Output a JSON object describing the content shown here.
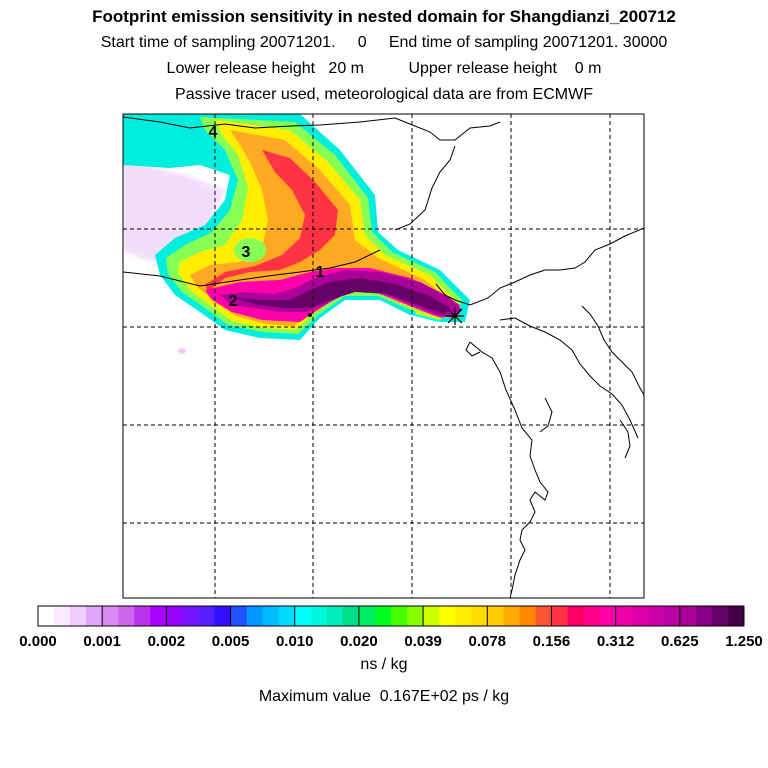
{
  "header": {
    "title": "Footprint emission sensitivity in nested domain for Shangdianzi_200712",
    "line2": "Start time of sampling 20071201.     0     End time of sampling 20071201. 30000",
    "line3": "Lower release height   20 m          Upper release height    0 m",
    "line4": "Passive tracer used, meteorological data are from ECMWF"
  },
  "map": {
    "markers": [
      "4",
      "3",
      "1",
      "2"
    ],
    "station_symbol": "star"
  },
  "colorbar": {
    "tick_labels": [
      "0.000",
      "0.001",
      "0.002",
      "0.005",
      "0.010",
      "0.020",
      "0.039",
      "0.078",
      "0.156",
      "0.312",
      "0.625",
      "1.250"
    ],
    "colors": [
      "#ffffff",
      "#fbeaff",
      "#f1ccff",
      "#e2a6ff",
      "#d98af4",
      "#cc66ee",
      "#bb33ee",
      "#aa00ff",
      "#9900ff",
      "#7711ff",
      "#5522ff",
      "#3311ff",
      "#2255ff",
      "#0099ff",
      "#00bbff",
      "#00ddff",
      "#00ffff",
      "#00f8dd",
      "#00eebb",
      "#00dd88",
      "#00ee66",
      "#00ff22",
      "#44ff00",
      "#88ff00",
      "#ccff00",
      "#ffff00",
      "#ffee00",
      "#ffdd00",
      "#ffcc00",
      "#ffaa00",
      "#ff8800",
      "#ff5533",
      "#ff3344",
      "#ff0066",
      "#ff0088",
      "#ff00aa",
      "#ee00aa",
      "#dd00aa",
      "#cc00aa",
      "#bb00aa",
      "#aa0099",
      "#880088",
      "#660066",
      "#440044"
    ],
    "unit": "ns / kg"
  },
  "footer": {
    "max_value": "Maximum value  0.167E+02 ps / kg"
  }
}
